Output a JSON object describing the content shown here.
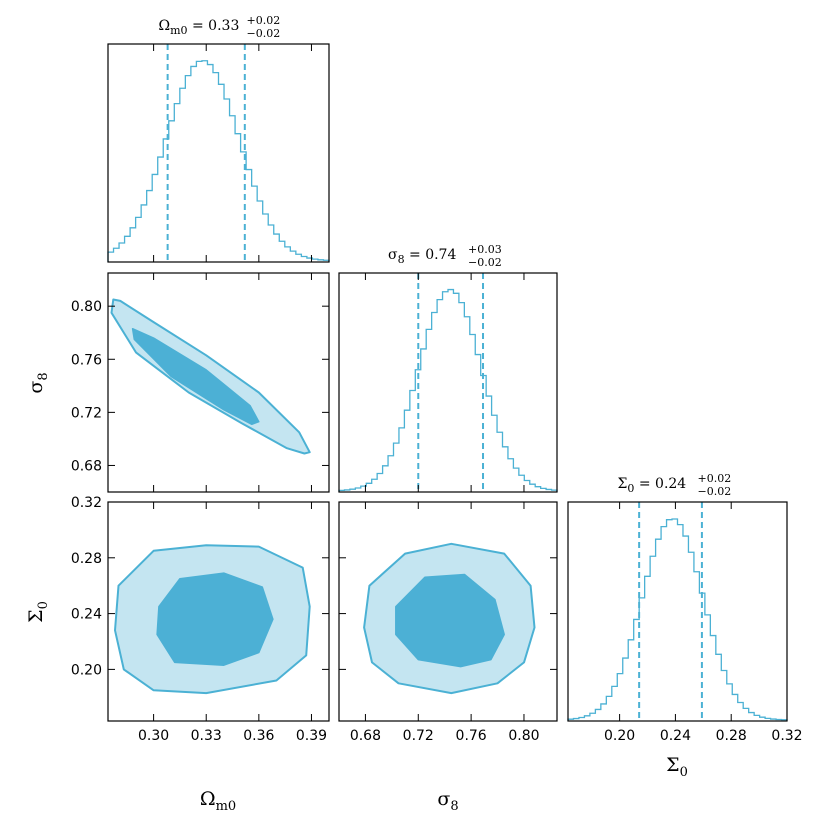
{
  "chart_data": {
    "type": "corner",
    "colors": {
      "line": "#4bb1d4",
      "fill_outer": "#c4e5f1",
      "fill_inner": "#4cb0d5",
      "frame": "#000000"
    },
    "parameters": [
      {
        "symbol": "Ω",
        "subscript": "m",
        "subsubscript": "0",
        "median": "0.33",
        "upper_error": "+0.02",
        "lower_error": "−0.02",
        "range": [
          0.274,
          0.4
        ],
        "ticks": [
          0.3,
          0.33,
          0.36,
          0.39
        ],
        "tick_labels": [
          "0.30",
          "0.33",
          "0.36",
          "0.39"
        ],
        "quantiles": [
          0.308,
          0.352
        ],
        "hist_center": 0.328,
        "hist_sigma": 0.021
      },
      {
        "symbol": "σ",
        "subscript": "8",
        "median": "0.74",
        "upper_error": "+0.03",
        "lower_error": "−0.02",
        "range": [
          0.66,
          0.825
        ],
        "ticks": [
          0.68,
          0.72,
          0.76,
          0.8
        ],
        "tick_labels": [
          "0.68",
          "0.72",
          "0.76",
          "0.80"
        ],
        "quantiles": [
          0.72,
          0.769
        ],
        "hist_center": 0.744,
        "hist_sigma": 0.024
      },
      {
        "symbol": "Σ",
        "subscript": "0",
        "median": "0.24",
        "upper_error": "+0.02",
        "lower_error": "−0.02",
        "range": [
          0.163,
          0.32
        ],
        "ticks": [
          0.2,
          0.24,
          0.28,
          0.32
        ],
        "tick_labels": [
          "0.20",
          "0.24",
          "0.28",
          "0.32"
        ],
        "quantiles": [
          0.214,
          0.259
        ],
        "hist_center": 0.238,
        "hist_sigma": 0.022
      }
    ],
    "contours": [
      {
        "x": "Ω_m0",
        "y": "σ8",
        "outer": [
          [
            0.277,
            0.805
          ],
          [
            0.281,
            0.804
          ],
          [
            0.3,
            0.788
          ],
          [
            0.33,
            0.763
          ],
          [
            0.36,
            0.735
          ],
          [
            0.383,
            0.705
          ],
          [
            0.389,
            0.69
          ],
          [
            0.386,
            0.689
          ],
          [
            0.376,
            0.693
          ],
          [
            0.35,
            0.712
          ],
          [
            0.32,
            0.735
          ],
          [
            0.29,
            0.765
          ],
          [
            0.276,
            0.795
          ]
        ],
        "inner": [
          [
            0.288,
            0.783
          ],
          [
            0.3,
            0.776
          ],
          [
            0.33,
            0.752
          ],
          [
            0.355,
            0.725
          ],
          [
            0.36,
            0.713
          ],
          [
            0.356,
            0.711
          ],
          [
            0.34,
            0.722
          ],
          [
            0.31,
            0.747
          ],
          [
            0.289,
            0.775
          ]
        ]
      },
      {
        "x": "Ω_m0",
        "y": "Σ0",
        "outer": [
          [
            0.28,
            0.26
          ],
          [
            0.3,
            0.285
          ],
          [
            0.33,
            0.289
          ],
          [
            0.36,
            0.288
          ],
          [
            0.385,
            0.273
          ],
          [
            0.389,
            0.245
          ],
          [
            0.387,
            0.21
          ],
          [
            0.37,
            0.192
          ],
          [
            0.33,
            0.183
          ],
          [
            0.3,
            0.185
          ],
          [
            0.283,
            0.2
          ],
          [
            0.278,
            0.228
          ]
        ],
        "inner": [
          [
            0.303,
            0.245
          ],
          [
            0.315,
            0.265
          ],
          [
            0.34,
            0.269
          ],
          [
            0.362,
            0.259
          ],
          [
            0.368,
            0.236
          ],
          [
            0.36,
            0.212
          ],
          [
            0.34,
            0.203
          ],
          [
            0.312,
            0.205
          ],
          [
            0.302,
            0.225
          ]
        ]
      },
      {
        "x": "σ8",
        "y": "Σ0",
        "outer": [
          [
            0.683,
            0.26
          ],
          [
            0.71,
            0.283
          ],
          [
            0.745,
            0.29
          ],
          [
            0.785,
            0.283
          ],
          [
            0.805,
            0.26
          ],
          [
            0.808,
            0.23
          ],
          [
            0.8,
            0.205
          ],
          [
            0.78,
            0.19
          ],
          [
            0.745,
            0.183
          ],
          [
            0.705,
            0.19
          ],
          [
            0.685,
            0.205
          ],
          [
            0.679,
            0.23
          ]
        ],
        "inner": [
          [
            0.703,
            0.245
          ],
          [
            0.725,
            0.266
          ],
          [
            0.755,
            0.268
          ],
          [
            0.778,
            0.25
          ],
          [
            0.785,
            0.225
          ],
          [
            0.775,
            0.207
          ],
          [
            0.752,
            0.202
          ],
          [
            0.72,
            0.207
          ],
          [
            0.703,
            0.225
          ]
        ]
      }
    ]
  }
}
